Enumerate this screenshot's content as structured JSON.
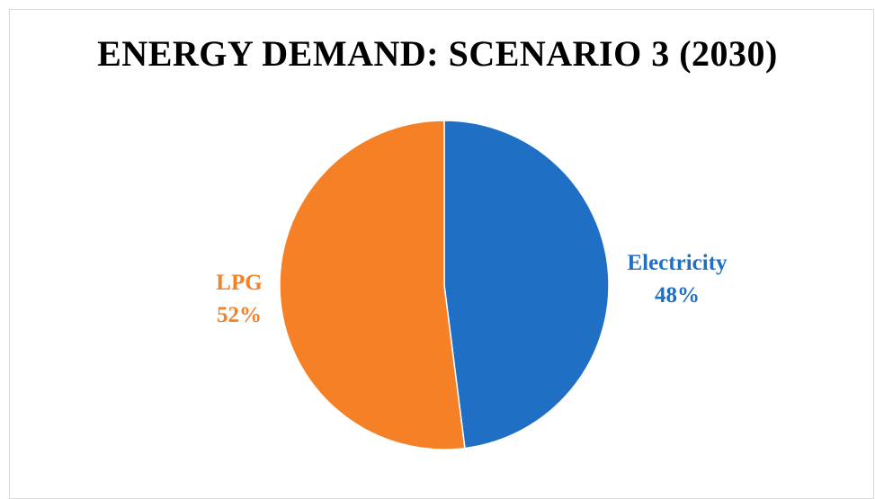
{
  "chart_data": {
    "type": "pie",
    "title": "ENERGY DEMAND: SCENARIO 3 (2030)",
    "slices": [
      {
        "name": "Electricity",
        "value": 48,
        "label": "48%",
        "color": "#1f6fc5"
      },
      {
        "name": "LPG",
        "value": 52,
        "label": "52%",
        "color": "#f58025"
      }
    ],
    "start_angle": "12 o'clock, clockwise",
    "legend": "none (data labels beside slices)"
  }
}
